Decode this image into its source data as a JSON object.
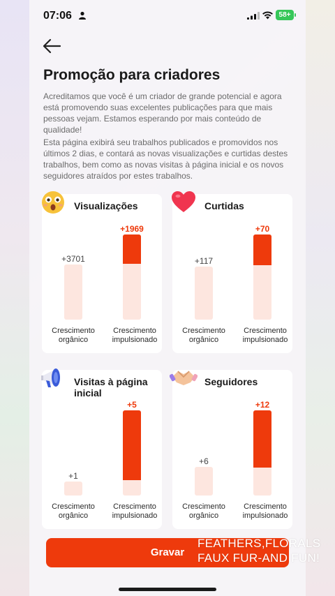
{
  "status_bar": {
    "time": "07:06",
    "battery": "58+"
  },
  "header": {
    "title": "Promoção para criadores"
  },
  "intro": {
    "paragraph_1": "Acreditamos que você é um criador de grande potencial e agora está promovendo suas excelentes publicações para que mais pessoas vejam. Estamos esperando por mais conteúdo de qualidade!",
    "paragraph_2": "Esta página exibirá seu trabalhos publicados e promovidos nos últimos 2 dias, e contará as novas visualizações e curtidas destes trabalhos, bem como as novas visitas à página inicial e os novos seguidores atraídos por estes trabalhos."
  },
  "labels": {
    "organic": "Crescimento orgânico",
    "boosted": "Crescimento impulsionado"
  },
  "cards": [
    {
      "title": "Visualizações",
      "icon": "surprised-face-icon",
      "organic": "+3701",
      "boosted": "+1969"
    },
    {
      "title": "Curtidas",
      "icon": "heart-icon",
      "organic": "+117",
      "boosted": "+70"
    },
    {
      "title": "Visitas à página inicial",
      "icon": "megaphone-icon",
      "organic": "+1",
      "boosted": "+5"
    },
    {
      "title": "Seguidores",
      "icon": "handshake-icon",
      "organic": "+6",
      "boosted": "+12"
    }
  ],
  "actions": {
    "save_label": "Gravar"
  },
  "overlay": {
    "line_1": "FEATHERS,FLORALS",
    "line_2": "FAUX FUR-AND FUN!"
  },
  "colors": {
    "accent": "#ee3a0c",
    "bar_light": "#fde6df"
  }
}
